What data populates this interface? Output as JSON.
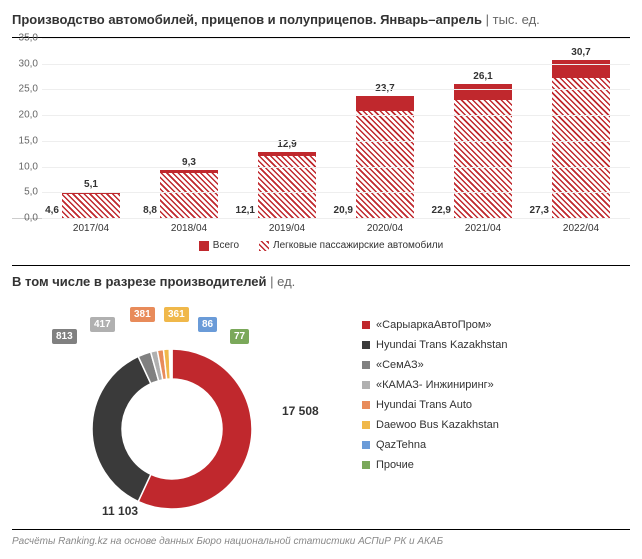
{
  "title": "Производство автомобилей, прицепов и полуприцепов. Январь–апрель",
  "title_unit": "тыс. ед.",
  "bar_chart": {
    "type": "stacked-bar",
    "ylim": [
      0,
      35
    ],
    "ytick_step": 5,
    "y_ticks": [
      "0,0",
      "5,0",
      "10,0",
      "15,0",
      "20,0",
      "25,0",
      "30,0",
      "35,0"
    ],
    "categories": [
      "2017/04",
      "2018/04",
      "2019/04",
      "2020/04",
      "2021/04",
      "2022/04"
    ],
    "series_total": [
      5.1,
      9.3,
      12.9,
      23.7,
      26.1,
      30.7
    ],
    "series_cars": [
      4.6,
      8.8,
      12.1,
      20.9,
      22.9,
      27.3
    ],
    "labels_total": [
      "5,1",
      "9,3",
      "12,9",
      "23,7",
      "26,1",
      "30,7"
    ],
    "labels_cars": [
      "4,6",
      "8,8",
      "12,1",
      "20,9",
      "22,9",
      "27,3"
    ],
    "color_solid": "#c0282d",
    "color_hatch": "#c0282d",
    "legend": [
      {
        "label": "Всего",
        "type": "solid"
      },
      {
        "label": "Легковые пассажирские автомобили",
        "type": "hatch"
      }
    ]
  },
  "subtitle": "В том числе в разрезе производителей",
  "subtitle_unit": "ед.",
  "donut": {
    "type": "donut",
    "total": 30746,
    "slices": [
      {
        "label": "«СарыаркаАвтоПром»",
        "value": 17508,
        "display": "17 508",
        "color": "#c0282d"
      },
      {
        "label": "Hyundai Trans Kazakhstan",
        "value": 11103,
        "display": "11 103",
        "color": "#3a3a3a"
      },
      {
        "label": "«СемАЗ»",
        "value": 813,
        "display": "813",
        "color": "#808080"
      },
      {
        "label": "«КАМАЗ- Инжиниринг»",
        "value": 417,
        "display": "417",
        "color": "#b0b0b0"
      },
      {
        "label": "Hyundai Trans Auto",
        "value": 381,
        "display": "381",
        "color": "#e88b5a"
      },
      {
        "label": "Daewoo Bus Kazakhstan",
        "value": 361,
        "display": "361",
        "color": "#f0b84a"
      },
      {
        "label": "QazTehna",
        "value": 86,
        "display": "86",
        "color": "#6a9bd8"
      },
      {
        "label": "Прочие",
        "value": 77,
        "display": "77",
        "color": "#7aa85a"
      }
    ]
  },
  "footer": "Расчёты Ranking.kz на основе данных Бюро национальной статистики АСПиР РК и АКАБ"
}
